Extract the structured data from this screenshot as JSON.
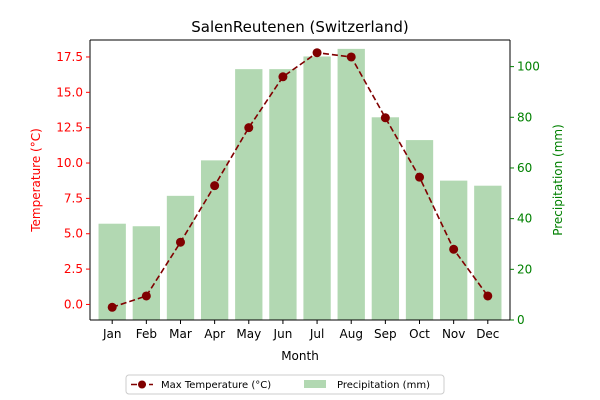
{
  "chart_data": {
    "type": "bar+line",
    "title": "SalenReutenen (Switzerland)",
    "xlabel": "Month",
    "ylabel_left": "Temperature (°C)",
    "ylabel_right": "Precipitation (mm)",
    "categories": [
      "Jan",
      "Feb",
      "Mar",
      "Apr",
      "May",
      "Jun",
      "Jul",
      "Aug",
      "Sep",
      "Oct",
      "Nov",
      "Dec"
    ],
    "series": [
      {
        "name": "Max Temperature (°C)",
        "type": "line",
        "axis": "left",
        "color": "#800000",
        "values": [
          -0.2,
          0.6,
          4.4,
          8.4,
          12.5,
          16.1,
          17.8,
          17.5,
          13.2,
          9.0,
          3.9,
          0.6
        ]
      },
      {
        "name": "Precipitation (mm)",
        "type": "bar",
        "axis": "right",
        "color": "#b2d8b2",
        "values": [
          38,
          37,
          49,
          63,
          99,
          99,
          104,
          107,
          80,
          71,
          55,
          53
        ]
      }
    ],
    "ylim_left": [
      -1.1,
      18.7
    ],
    "yticks_left": [
      "0.0",
      "2.5",
      "5.0",
      "7.5",
      "10.0",
      "12.5",
      "15.0",
      "17.5"
    ],
    "ylim_right": [
      0,
      110.5
    ],
    "yticks_right": [
      "0",
      "20",
      "40",
      "60",
      "80",
      "100"
    ],
    "left_axis_color": "#ff0000",
    "right_axis_color": "#008000",
    "grid": false,
    "legend_position": "bottom-center"
  }
}
